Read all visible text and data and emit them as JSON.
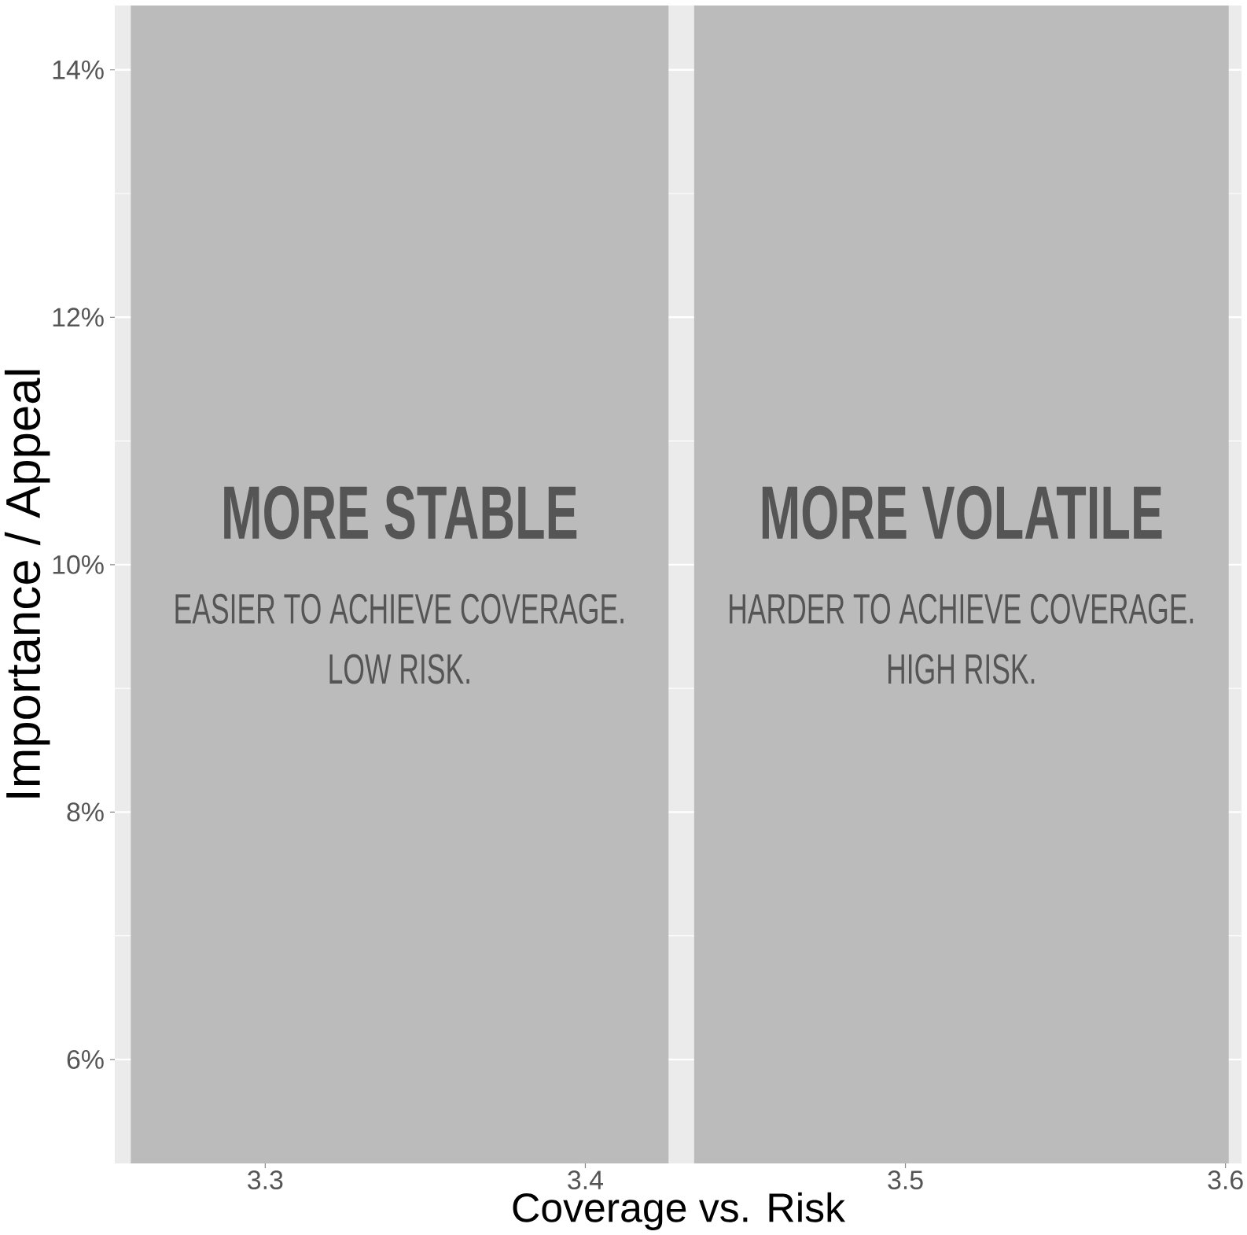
{
  "chart_data": {
    "type": "scatter",
    "xlabel": "Coverage vs. Risk",
    "ylabel": "Importance / Appeal",
    "xlim": [
      3.253,
      3.605
    ],
    "ylim": [
      5.16,
      14.52
    ],
    "xticks": [
      3.3,
      3.4,
      3.5,
      3.6
    ],
    "yticks": [
      {
        "value": 6,
        "label": "6%"
      },
      {
        "value": 8,
        "label": "8%"
      },
      {
        "value": 10,
        "label": "10%"
      },
      {
        "value": 12,
        "label": "12%"
      },
      {
        "value": 14,
        "label": "14%"
      }
    ],
    "grid": true,
    "bands": [
      {
        "axis": "x",
        "from": 3.258,
        "to": 3.426,
        "label": "MORE STABLE",
        "color": "#bbbbbb"
      },
      {
        "axis": "x",
        "from": 3.434,
        "to": 3.601,
        "label": "MORE VOLATILE",
        "color": "#bbbbbb"
      }
    ],
    "annotations": [
      "EASIER TO ACHIEVE COVERAGE.",
      "LOW RISK.",
      "HARDER TO ACHIEVE COVERAGE.",
      "HIGH RISK."
    ]
  }
}
